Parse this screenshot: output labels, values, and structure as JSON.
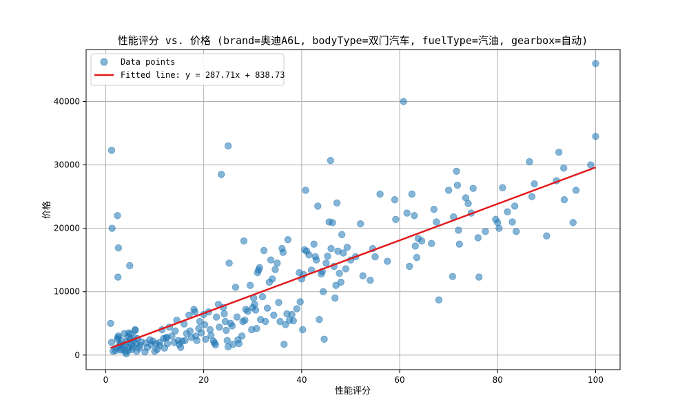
{
  "chart_data": {
    "type": "scatter",
    "title": "性能评分 vs. 价格 (brand=奥迪A6L, bodyType=双门汽车, fuelType=汽油, gearbox=自动)",
    "xlabel": "性能评分",
    "ylabel": "价格",
    "xlim": [
      -4,
      105
    ],
    "ylim": [
      -2300,
      48200
    ],
    "xticks": [
      0,
      20,
      40,
      60,
      80,
      100
    ],
    "yticks": [
      0,
      10000,
      20000,
      30000,
      40000
    ],
    "grid": true,
    "legend": {
      "position": "top-left",
      "entries": [
        "Data points",
        "Fitted line: y = 287.71x + 838.73"
      ]
    },
    "colors": {
      "points": "#1f77b4",
      "fit_line": "#e31a1c"
    },
    "fit_line": {
      "slope": 287.71,
      "intercept": 838.73,
      "x_range": [
        1,
        100
      ]
    },
    "series": [
      {
        "name": "Data points",
        "points": [
          [
            1,
            5000
          ],
          [
            1.2,
            2000
          ],
          [
            1.5,
            600
          ],
          [
            2,
            700
          ],
          [
            2.2,
            1100
          ],
          [
            2.4,
            2500
          ],
          [
            2.5,
            2800
          ],
          [
            2.6,
            3000
          ],
          [
            2.8,
            1500
          ],
          [
            3,
            800
          ],
          [
            3,
            1800
          ],
          [
            3.2,
            2300
          ],
          [
            3.4,
            900
          ],
          [
            3.5,
            1300
          ],
          [
            3.8,
            3400
          ],
          [
            4,
            500
          ],
          [
            4,
            1600
          ],
          [
            4.2,
            200
          ],
          [
            4.3,
            2100
          ],
          [
            4.5,
            2900
          ],
          [
            4.6,
            700
          ],
          [
            4.8,
            1200
          ],
          [
            5,
            3300
          ],
          [
            5,
            2500
          ],
          [
            5.2,
            1700
          ],
          [
            5.4,
            900
          ],
          [
            5.5,
            1400
          ],
          [
            5.7,
            2200
          ],
          [
            6,
            3900
          ],
          [
            6,
            4000
          ],
          [
            6.2,
            1800
          ],
          [
            6.3,
            600
          ],
          [
            6.5,
            2600
          ],
          [
            6.8,
            1100
          ],
          [
            7,
            1500
          ],
          [
            7.2,
            2100
          ],
          [
            8,
            500
          ],
          [
            8.2,
            1900
          ],
          [
            8.5,
            1200
          ],
          [
            9,
            2400
          ],
          [
            9.3,
            1600
          ],
          [
            9.6,
            2200
          ],
          [
            10,
            600
          ],
          [
            10.5,
            900
          ],
          [
            11,
            1500
          ],
          [
            11,
            2000
          ],
          [
            11.5,
            4000
          ],
          [
            11.8,
            2600
          ],
          [
            12,
            1100
          ],
          [
            12.3,
            2700
          ],
          [
            12.6,
            1800
          ],
          [
            13,
            4400
          ],
          [
            13.5,
            3000
          ],
          [
            14,
            2000
          ],
          [
            14.2,
            3800
          ],
          [
            14.5,
            5500
          ],
          [
            14.8,
            2300
          ],
          [
            15,
            1700
          ],
          [
            15.3,
            1200
          ],
          [
            15.6,
            2200
          ],
          [
            16,
            4900
          ],
          [
            16.2,
            2300
          ],
          [
            16.5,
            3400
          ],
          [
            17,
            6300
          ],
          [
            17.2,
            3800
          ],
          [
            17.5,
            2800
          ],
          [
            18,
            7200
          ],
          [
            18.2,
            6800
          ],
          [
            18.4,
            3000
          ],
          [
            18.6,
            2300
          ],
          [
            19,
            4200
          ],
          [
            19.2,
            5300
          ],
          [
            19.5,
            3500
          ],
          [
            20,
            6400
          ],
          [
            20.2,
            4800
          ],
          [
            20.4,
            2500
          ],
          [
            21,
            6800
          ],
          [
            21.3,
            4000
          ],
          [
            21.5,
            3100
          ],
          [
            22,
            2200
          ],
          [
            22.2,
            1900
          ],
          [
            22.4,
            1600
          ],
          [
            22.6,
            6000
          ],
          [
            23,
            8000
          ],
          [
            23.2,
            4400
          ],
          [
            23.6,
            28500
          ],
          [
            24,
            7500
          ],
          [
            24.2,
            6500
          ],
          [
            24.4,
            5300
          ],
          [
            24.6,
            3900
          ],
          [
            24.8,
            2300
          ],
          [
            25,
            1300
          ],
          [
            25,
            33000
          ],
          [
            25.2,
            14500
          ],
          [
            25.5,
            5000
          ],
          [
            25.8,
            4600
          ],
          [
            26,
            1700
          ],
          [
            26.5,
            10700
          ],
          [
            26.8,
            6000
          ],
          [
            27,
            2400
          ],
          [
            27.2,
            1800
          ],
          [
            27.8,
            3000
          ],
          [
            28,
            5300
          ],
          [
            28.2,
            18000
          ],
          [
            28.4,
            5500
          ],
          [
            28.6,
            7200
          ],
          [
            29,
            6900
          ],
          [
            29.5,
            11000
          ],
          [
            29.8,
            4000
          ],
          [
            30,
            7500
          ],
          [
            30.2,
            9000
          ],
          [
            30.4,
            8000
          ],
          [
            30.6,
            7100
          ],
          [
            30.8,
            4200
          ],
          [
            31,
            13000
          ],
          [
            31.2,
            13400
          ],
          [
            31.4,
            13800
          ],
          [
            31.6,
            5600
          ],
          [
            32,
            9200
          ],
          [
            32.3,
            16500
          ],
          [
            32.6,
            5300
          ],
          [
            33,
            7400
          ],
          [
            33.4,
            11500
          ],
          [
            33.7,
            15000
          ],
          [
            34,
            12000
          ],
          [
            34.3,
            6300
          ],
          [
            34.6,
            13500
          ],
          [
            35,
            14500
          ],
          [
            35.3,
            8300
          ],
          [
            35.6,
            5300
          ],
          [
            36,
            16800
          ],
          [
            36.2,
            16200
          ],
          [
            36.4,
            1700
          ],
          [
            36.7,
            4800
          ],
          [
            37,
            6500
          ],
          [
            37.2,
            18200
          ],
          [
            37.5,
            5500
          ],
          [
            38,
            6400
          ],
          [
            38.3,
            5400
          ],
          [
            39,
            7300
          ],
          [
            39.5,
            13000
          ],
          [
            39.7,
            8400
          ],
          [
            40,
            12000
          ],
          [
            40.2,
            4000
          ],
          [
            40.4,
            12700
          ],
          [
            40.6,
            16600
          ],
          [
            40.8,
            26000
          ],
          [
            41,
            16400
          ],
          [
            41.5,
            15800
          ],
          [
            42,
            13400
          ],
          [
            42.5,
            17500
          ],
          [
            42.8,
            15500
          ],
          [
            43,
            15000
          ],
          [
            43.3,
            23500
          ],
          [
            43.6,
            5600
          ],
          [
            44,
            12800
          ],
          [
            44.2,
            13200
          ],
          [
            44.4,
            10000
          ],
          [
            44.6,
            2500
          ],
          [
            45,
            14500
          ],
          [
            45.3,
            15600
          ],
          [
            45.6,
            21000
          ],
          [
            45.9,
            30700
          ],
          [
            46,
            16800
          ],
          [
            46.3,
            20900
          ],
          [
            46.6,
            14000
          ],
          [
            46.8,
            9000
          ],
          [
            47,
            11000
          ],
          [
            47.2,
            24000
          ],
          [
            47.4,
            16400
          ],
          [
            47.7,
            12900
          ],
          [
            48,
            11500
          ],
          [
            48.2,
            19000
          ],
          [
            48.5,
            16100
          ],
          [
            49,
            13600
          ],
          [
            49.3,
            17000
          ],
          [
            50,
            15000
          ],
          [
            51,
            15500
          ],
          [
            52,
            20700
          ],
          [
            52.5,
            12500
          ],
          [
            54,
            11800
          ],
          [
            54.5,
            16800
          ],
          [
            55,
            15500
          ],
          [
            56,
            25400
          ],
          [
            57.5,
            14800
          ],
          [
            59,
            24500
          ],
          [
            59.2,
            21400
          ],
          [
            60.8,
            40000
          ],
          [
            61.5,
            22400
          ],
          [
            62,
            14000
          ],
          [
            62.5,
            25400
          ],
          [
            63,
            22000
          ],
          [
            63.2,
            17200
          ],
          [
            63.5,
            15400
          ],
          [
            63.8,
            18400
          ],
          [
            64.5,
            18000
          ],
          [
            66.5,
            17600
          ],
          [
            67,
            23000
          ],
          [
            67.5,
            21000
          ],
          [
            68,
            8700
          ],
          [
            70,
            26000
          ],
          [
            70.8,
            12400
          ],
          [
            71,
            21800
          ],
          [
            71.6,
            29000
          ],
          [
            71.8,
            26800
          ],
          [
            72,
            19700
          ],
          [
            72.2,
            17500
          ],
          [
            73.5,
            24800
          ],
          [
            74,
            23900
          ],
          [
            74.6,
            22400
          ],
          [
            75,
            26300
          ],
          [
            76,
            18500
          ],
          [
            76.2,
            12300
          ],
          [
            77.5,
            19500
          ],
          [
            79.6,
            21400
          ],
          [
            80,
            20900
          ],
          [
            80.3,
            20000
          ],
          [
            81,
            26400
          ],
          [
            82,
            22600
          ],
          [
            83,
            21000
          ],
          [
            83.5,
            23500
          ],
          [
            83.8,
            19500
          ],
          [
            86.5,
            30500
          ],
          [
            87,
            25000
          ],
          [
            87.5,
            27000
          ],
          [
            90,
            18800
          ],
          [
            92,
            27500
          ],
          [
            92.5,
            32000
          ],
          [
            93.5,
            29500
          ],
          [
            93.6,
            24500
          ],
          [
            95.4,
            20900
          ],
          [
            96,
            26000
          ],
          [
            99,
            30000
          ],
          [
            100,
            34500
          ],
          [
            100,
            46000
          ],
          [
            1.2,
            32300
          ],
          [
            1.3,
            20000
          ],
          [
            2.4,
            22000
          ],
          [
            2.5,
            12300
          ],
          [
            2.6,
            16900
          ],
          [
            4.9,
            14100
          ],
          [
            4.7,
            3500
          ],
          [
            5.8,
            2800
          ],
          [
            10.2,
            1800
          ],
          [
            12.5,
            2800
          ]
        ]
      }
    ]
  }
}
